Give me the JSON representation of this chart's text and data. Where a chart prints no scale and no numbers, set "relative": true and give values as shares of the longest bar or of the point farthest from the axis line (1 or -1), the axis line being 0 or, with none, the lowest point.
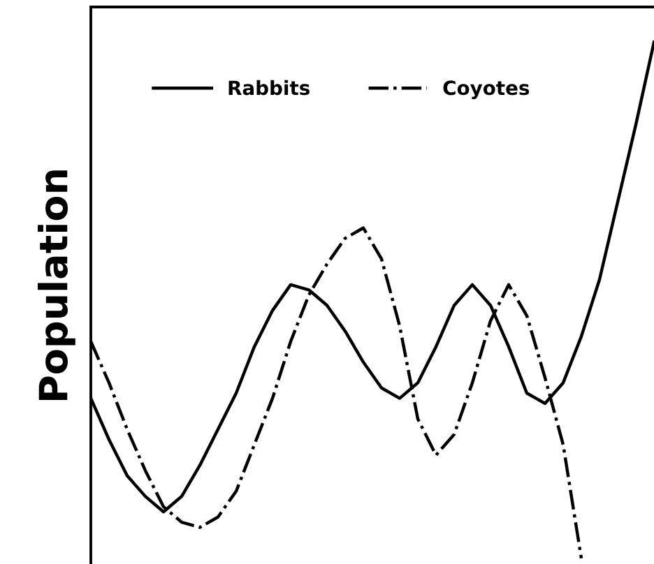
{
  "chart_data": {
    "type": "line",
    "relative": true,
    "ylabel": "Population",
    "legend": "top left",
    "grid": false,
    "categories": [
      null,
      null,
      null,
      null,
      null,
      null,
      null,
      null,
      null,
      null,
      null,
      null,
      null,
      null,
      null,
      null,
      null,
      null,
      null,
      null,
      null,
      null,
      null,
      null,
      null,
      null,
      null,
      null,
      null,
      null,
      null,
      null
    ],
    "series": [
      {
        "name": "Rabbits",
        "color": "#000000",
        "line_style": "solid",
        "values": [
          0.31,
          0.23,
          0.16,
          0.12,
          0.09,
          0.12,
          0.18,
          0.25,
          0.32,
          0.41,
          0.48,
          0.53,
          0.52,
          0.49,
          0.44,
          0.38,
          0.33,
          0.31,
          0.34,
          0.41,
          0.49,
          0.53,
          0.49,
          0.41,
          0.32,
          0.3,
          0.34,
          0.43,
          0.54,
          0.69,
          0.84,
          1
        ]
      },
      {
        "name": "Coyotes",
        "color": "#000000",
        "line_style": "dashdot",
        "values": [
          0.42,
          0.34,
          0.25,
          0.17,
          0.1,
          0.07,
          0.06,
          0.08,
          0.13,
          0.22,
          0.31,
          0.42,
          0.51,
          0.57,
          0.62,
          0.64,
          0.58,
          0.45,
          0.27,
          0.2,
          0.24,
          0.34,
          0.46,
          0.53,
          0.47,
          0.35,
          0.22,
          0,
          null,
          null,
          null,
          null
        ]
      }
    ]
  }
}
